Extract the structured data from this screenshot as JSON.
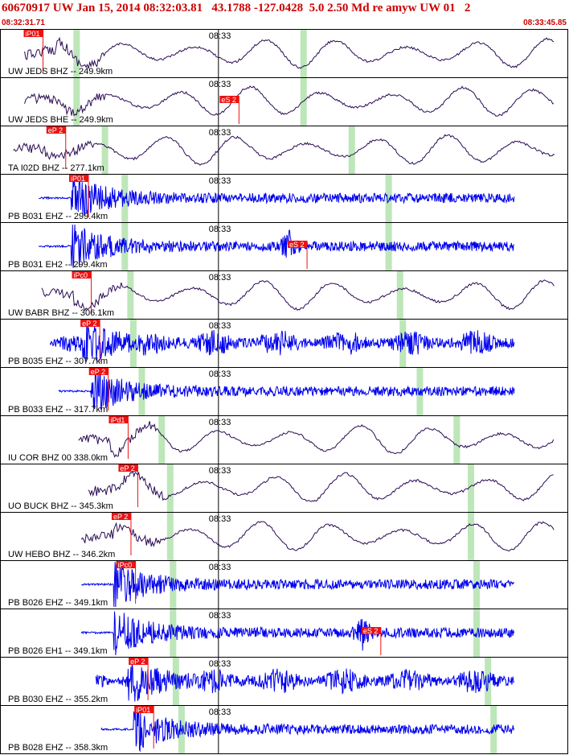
{
  "header": {
    "title": "60670917 UW Jan 15, 2014 08:32:03.81   43.1788 -127.0428  5.0 2.50 Md re amyw UW 01   2",
    "start_time": "08:32:31.71",
    "end_time": "08:33:45.85"
  },
  "minute_label": "08:33",
  "colors": {
    "header_text": "#cc0000",
    "pick_box": "#ee1111",
    "trace_short_period": "#0000ee",
    "trace_broadband": "#2a0a55",
    "theoretical_window": "#bde6b9"
  },
  "traces": [
    {
      "label": "UW JEDS BHZ -- 249.9km",
      "type": "bb",
      "pick": "iP01",
      "pick_t": 0.005,
      "onset_t": 0.1,
      "green_t": [
        0.135,
        0.535
      ],
      "s_pick": "",
      "s_t": null,
      "dense": false
    },
    {
      "label": "UW JEDS BHE -- 249.9km",
      "type": "bb",
      "pick": "",
      "pick_t": null,
      "onset_t": 0.1,
      "green_t": [
        0.135,
        0.535
      ],
      "s_pick": "eS 2",
      "s_t": 0.39,
      "dense": false
    },
    {
      "label": "TA I02D BHZ -- 277.1km",
      "type": "bb",
      "pick": "eP 2",
      "pick_t": 0.045,
      "onset_t": 0.08,
      "green_t": [
        0.185,
        0.62
      ],
      "s_pick": "",
      "s_t": null,
      "dense": false
    },
    {
      "label": "PB B031 EHZ -- 299.4km",
      "type": "sp",
      "pick": "iP01",
      "pick_t": 0.085,
      "onset_t": 0.125,
      "green_t": [
        0.22,
        0.685
      ],
      "s_pick": "",
      "s_t": null,
      "dense": false
    },
    {
      "label": "PB B031 EH2 -- 299.4km",
      "type": "sp",
      "pick": "",
      "pick_t": null,
      "onset_t": 0.125,
      "green_t": [
        0.22,
        0.685
      ],
      "s_pick": "eS 2",
      "s_t": 0.51,
      "dense": false
    },
    {
      "label": "UW BABR BHZ -- 306.1km",
      "type": "bb",
      "pick": "iPc0",
      "pick_t": 0.09,
      "onset_t": 0.13,
      "green_t": [
        0.23,
        0.705
      ],
      "s_pick": "",
      "s_t": null,
      "dense": false
    },
    {
      "label": "PB B035 EHZ -- 307.7km",
      "type": "sp",
      "pick": "eP 2",
      "pick_t": 0.105,
      "onset_t": 0.145,
      "green_t": [
        0.235,
        0.71
      ],
      "s_pick": "",
      "s_t": null,
      "dense": true
    },
    {
      "label": "PB B033 EHZ -- 317.7km",
      "type": "sp",
      "pick": "eP 2",
      "pick_t": 0.12,
      "onset_t": 0.16,
      "green_t": [
        0.25,
        0.74
      ],
      "s_pick": "",
      "s_t": null,
      "dense": false
    },
    {
      "label": "IU COR BHZ 00 338.0km",
      "type": "bb",
      "pick": "iPd1",
      "pick_t": 0.155,
      "onset_t": 0.195,
      "green_t": [
        0.285,
        0.805
      ],
      "s_pick": "",
      "s_t": null,
      "dense": false
    },
    {
      "label": "UO BUCK BHZ -- 345.3km",
      "type": "bb",
      "pick": "eP 2",
      "pick_t": 0.172,
      "onset_t": 0.212,
      "green_t": [
        0.3,
        0.83
      ],
      "s_pick": "",
      "s_t": null,
      "dense": false
    },
    {
      "label": "UW HEBO BHZ -- 346.2km",
      "type": "bb",
      "pick": "eP 2",
      "pick_t": 0.16,
      "onset_t": 0.2,
      "green_t": [
        0.3,
        0.83
      ],
      "s_pick": "",
      "s_t": null,
      "dense": false
    },
    {
      "label": "PB B026 EHZ -- 349.1km",
      "type": "sp",
      "pick": "iPc0",
      "pick_t": 0.168,
      "onset_t": 0.2,
      "green_t": [
        0.305,
        0.84
      ],
      "s_pick": "",
      "s_t": null,
      "dense": false
    },
    {
      "label": "PB B026 EH1 -- 349.1km",
      "type": "sp",
      "pick": "",
      "pick_t": null,
      "onset_t": 0.2,
      "green_t": [
        0.305,
        0.84
      ],
      "s_pick": "eS 2",
      "s_t": 0.64,
      "dense": false
    },
    {
      "label": "PB B030 EHZ -- 355.2km",
      "type": "sp",
      "pick": "eP 2",
      "pick_t": 0.19,
      "onset_t": 0.225,
      "green_t": [
        0.31,
        0.86
      ],
      "s_pick": "",
      "s_t": null,
      "dense": true
    },
    {
      "label": "PB B028 EHZ -- 358.3km",
      "type": "sp",
      "pick": "iP01",
      "pick_t": 0.2,
      "onset_t": 0.235,
      "green_t": [
        0.32,
        0.87
      ],
      "s_pick": "",
      "s_t": null,
      "dense": false
    }
  ]
}
